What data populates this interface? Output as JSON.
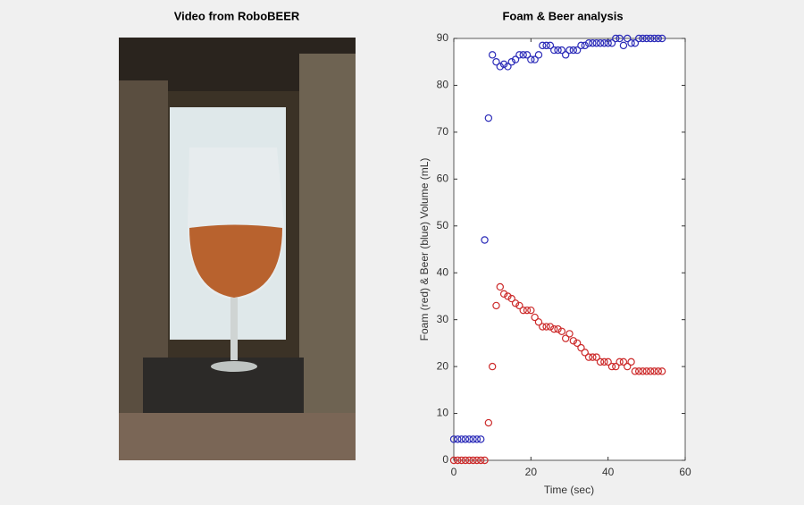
{
  "video_title": "Video from RoboBEER",
  "chart_data": {
    "type": "scatter",
    "title": "Foam & Beer analysis",
    "xlabel": "Time (sec)",
    "ylabel": "Foam (red) & Beer (blue) Volume (mL)",
    "xlim": [
      0,
      60
    ],
    "xticks": [
      0,
      20,
      40,
      60
    ],
    "ylim": [
      0,
      90
    ],
    "yticks": [
      0,
      10,
      20,
      30,
      40,
      50,
      60,
      70,
      80,
      90
    ],
    "series": [
      {
        "color": "#2b2bb8",
        "x": [
          0,
          1,
          2,
          3,
          4,
          5,
          6,
          7,
          8,
          9,
          10,
          11,
          12,
          13,
          14,
          15,
          16,
          17,
          18,
          19,
          20,
          21,
          22,
          23,
          24,
          25,
          26,
          27,
          28,
          29,
          30,
          31,
          32,
          33,
          34,
          35,
          36,
          37,
          38,
          39,
          40,
          41,
          42,
          43,
          44,
          45,
          46,
          47,
          48,
          49,
          50,
          51,
          52,
          53,
          54
        ],
        "values": [
          4.5,
          4.5,
          4.5,
          4.5,
          4.5,
          4.5,
          4.5,
          4.5,
          47,
          73,
          86.5,
          85,
          84,
          84.5,
          84,
          85,
          85.5,
          86.5,
          86.5,
          86.5,
          85.5,
          85.5,
          86.5,
          88.5,
          88.5,
          88.5,
          87.5,
          87.5,
          87.5,
          86.5,
          87.5,
          87.5,
          87.5,
          88.5,
          88.5,
          89,
          89,
          89,
          89,
          89,
          89,
          89,
          90,
          90,
          88.5,
          90,
          89,
          89,
          90,
          90,
          90,
          90,
          90,
          90,
          90
        ]
      },
      {
        "color": "#cc2a2a",
        "x": [
          0,
          1,
          2,
          3,
          4,
          5,
          6,
          7,
          8,
          9,
          10,
          11,
          12,
          13,
          14,
          15,
          16,
          17,
          18,
          19,
          20,
          21,
          22,
          23,
          24,
          25,
          26,
          27,
          28,
          29,
          30,
          31,
          32,
          33,
          34,
          35,
          36,
          37,
          38,
          39,
          40,
          41,
          42,
          43,
          44,
          45,
          46,
          47,
          48,
          49,
          50,
          51,
          52,
          53,
          54
        ],
        "values": [
          0,
          0,
          0,
          0,
          0,
          0,
          0,
          0,
          0,
          8,
          20,
          33,
          37,
          35.5,
          35,
          34.5,
          33.5,
          33,
          32,
          32,
          32,
          30.5,
          29.5,
          28.5,
          28.5,
          28.5,
          28,
          28,
          27.5,
          26,
          27,
          25.5,
          25,
          24,
          23,
          22,
          22,
          22,
          21,
          21,
          21,
          20,
          20,
          21,
          21,
          20,
          21,
          19,
          19,
          19,
          19,
          19,
          19,
          19,
          19
        ]
      }
    ]
  }
}
